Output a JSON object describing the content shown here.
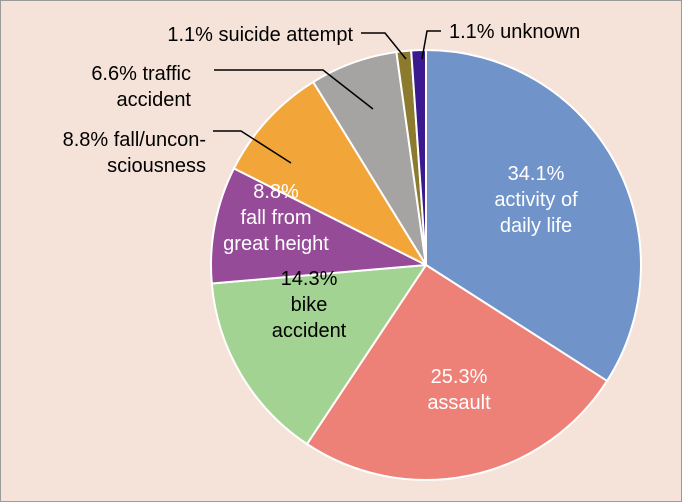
{
  "chart_data": {
    "type": "pie",
    "title": "",
    "start_angle_deg": 0,
    "direction": "clockwise",
    "slices": [
      {
        "value": 34.1,
        "label_lines": [
          "34.1%",
          "activity of",
          "daily life"
        ],
        "color": "#7093c9",
        "label_color": "#ffffff",
        "label_placement": "inside"
      },
      {
        "value": 25.3,
        "label_lines": [
          "25.3%",
          "assault"
        ],
        "color": "#ee8177",
        "label_color": "#ffffff",
        "label_placement": "inside"
      },
      {
        "value": 14.3,
        "label_lines": [
          "14.3%",
          "bike",
          "accident"
        ],
        "color": "#a3d393",
        "label_color": "#000000",
        "label_placement": "inside"
      },
      {
        "value": 8.8,
        "label_lines": [
          "8.8%",
          "fall from",
          "great height"
        ],
        "color": "#964b98",
        "label_color": "#ffffff",
        "label_placement": "inside"
      },
      {
        "value": 8.8,
        "label_lines": [
          "8.8% fall/uncon-",
          "sciousness"
        ],
        "color": "#f2a63a",
        "label_color": "#000000",
        "label_placement": "outside"
      },
      {
        "value": 6.6,
        "label_lines": [
          "6.6% traffic",
          "accident"
        ],
        "color": "#a6a4a3",
        "label_color": "#000000",
        "label_placement": "outside"
      },
      {
        "value": 1.1,
        "label_lines": [
          "1.1% suicide attempt"
        ],
        "color": "#8c7a2e",
        "label_color": "#000000",
        "label_placement": "outside"
      },
      {
        "value": 1.1,
        "label_lines": [
          "1.1% unknown"
        ],
        "color": "#3a1a8e",
        "label_color": "#000000",
        "label_placement": "outside"
      }
    ]
  }
}
